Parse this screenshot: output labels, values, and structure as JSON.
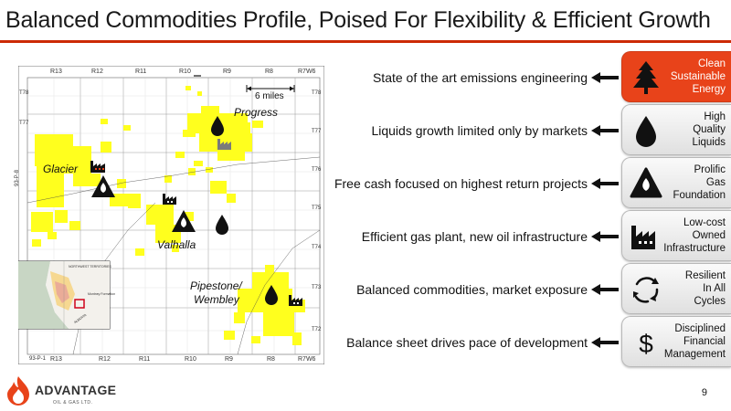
{
  "title": "Balanced Commodities Profile, Poised For Flexibility & Efficient Growth",
  "colors": {
    "accent": "#cc2a06",
    "active_tab": "#e8431a",
    "land": "#ffff1e",
    "facility": "#7a7a7a"
  },
  "map": {
    "ranges_top": [
      "R13",
      "R12",
      "R11",
      "R10",
      "R9",
      "R8",
      "R7W6"
    ],
    "ranges_bottom": [
      "R13",
      "R12",
      "R11",
      "R10",
      "R9",
      "R8",
      "R7W6"
    ],
    "townships_right": [
      "T78",
      "T77",
      "T76",
      "T75",
      "T74",
      "T73",
      "T72"
    ],
    "townships_left": [
      "T78",
      "T77"
    ],
    "sheet_left": "93-P-8",
    "sheet_bottom": "93-P-1",
    "scale_label": "6 miles",
    "places": {
      "progress": "Progress",
      "glacier": "Glacier",
      "valhalla": "Valhalla",
      "pipestone_line1": "Pipestone/",
      "pipestone_line2": "Wembley"
    },
    "inset_labels": [
      "NORTHWEST TERRITORIES",
      "Montney Formation",
      "ALBERTA"
    ]
  },
  "rows": [
    {
      "text": "State of the art emissions engineering",
      "tab": [
        "Clean",
        "Sustainable",
        "Energy"
      ],
      "icon": "tree-icon",
      "active": true
    },
    {
      "text": "Liquids growth limited only by markets",
      "tab": [
        "High",
        "Quality",
        "Liquids"
      ],
      "icon": "oil-drop-icon",
      "active": false
    },
    {
      "text": "Free cash focused on highest return projects",
      "tab": [
        "Prolific",
        "Gas",
        "Foundation"
      ],
      "icon": "gas-flame-icon",
      "active": false
    },
    {
      "text": "Efficient gas plant, new oil infrastructure",
      "tab": [
        "Low-cost",
        "Owned",
        "Infrastructure"
      ],
      "icon": "factory-icon",
      "active": false
    },
    {
      "text": "Balanced commodities, market exposure",
      "tab": [
        "Resilient",
        "In All",
        "Cycles"
      ],
      "icon": "cycle-arrows-icon",
      "active": false
    },
    {
      "text": "Balance sheet drives pace of development",
      "tab": [
        "Disciplined",
        "Financial",
        "Management"
      ],
      "icon": "dollar-icon",
      "active": false
    }
  ],
  "logo": {
    "name": "ADVANTAGE",
    "sub": "OIL & GAS LTD."
  },
  "page_number": "9"
}
